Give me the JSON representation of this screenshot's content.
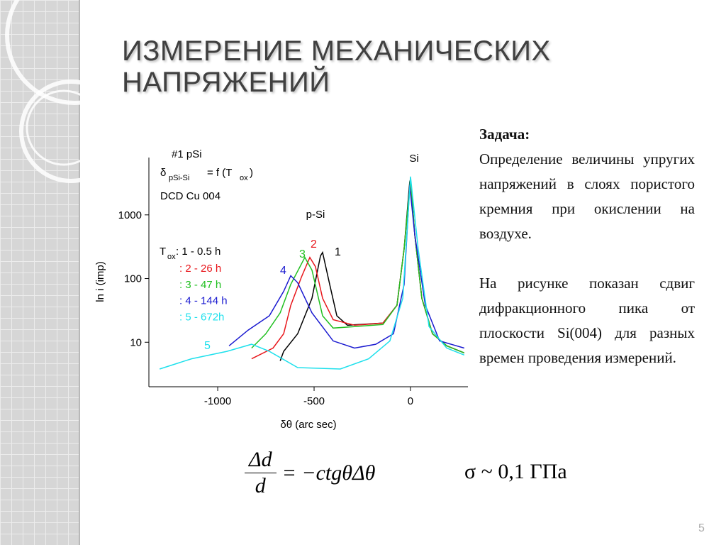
{
  "slide": {
    "title": [
      "ИЗМЕРЕНИЕ МЕХАНИЧЕСКИХ",
      "НАПРЯЖЕНИЙ"
    ],
    "task_heading": "Задача:",
    "task_text": "Определение величины упругих напряжений в слоях пористого кремния при окислении на воздухе.",
    "figure_text": "На рисунке показан сдвиг дифракционного пика от плоскости Si(004) для разных времен проведения измерений.",
    "formula": {
      "numerator": "Δd",
      "denominator": "d",
      "rhs": "= −ctgθΔθ"
    },
    "estimate": "σ ~ 0,1 ГПа",
    "page_number": "5"
  },
  "chart_data": {
    "type": "line",
    "x_label": "δθ (arc sec)",
    "y_label": "ln i (imp)",
    "log_y": true,
    "xlim": [
      -1357,
      298
    ],
    "ylim": [
      2,
      7950
    ],
    "xticks": [
      -1000,
      -500,
      0
    ],
    "yticks": [
      10,
      100,
      1000
    ],
    "annotations": {
      "sample": "#1 pSi",
      "relation_symbol": "δ",
      "relation_sub": "pSi-Si",
      "relation_mid": "= f (T",
      "relation_sub2": "ox",
      "relation_end": ")",
      "method": "DCD Cu 004",
      "peak_si": "Si",
      "peak_psi": "p-Si",
      "legend_t": "T",
      "legend_sub": "ox"
    },
    "series": [
      {
        "name": ": 1 - 0.5 h",
        "label": "1",
        "color": "#000000",
        "x": [
          -676,
          -658,
          -585,
          -511,
          -467,
          -456,
          -419,
          -382,
          -327,
          -143,
          -70,
          -33,
          -4,
          0,
          22,
          59,
          114,
          188,
          279
        ],
        "values": [
          5.1,
          7.2,
          13.6,
          48.9,
          227,
          257,
          81,
          26,
          18.5,
          20,
          38,
          293,
          3300,
          3600,
          490,
          49,
          13.6,
          8.8,
          6.8
        ]
      },
      {
        "name": ": 2 -  26 h",
        "label": "2",
        "color": "#e8161b",
        "x": [
          -824,
          -713,
          -658,
          -621,
          -566,
          -522,
          -493,
          -456,
          -401,
          -290,
          -143,
          -70,
          -33,
          0,
          22,
          59,
          114,
          188,
          279
        ],
        "values": [
          5.5,
          8.1,
          13.6,
          37.9,
          105,
          215,
          154,
          49,
          22.6,
          18.5,
          20,
          38,
          293,
          3400,
          490,
          49,
          13.6,
          8.8,
          6.8
        ]
      },
      {
        "name": ": 3 -  47 h",
        "label": "3",
        "color": "#22c022",
        "x": [
          -824,
          -750,
          -676,
          -621,
          -548,
          -511,
          -456,
          -401,
          -290,
          -143,
          -70,
          -33,
          0,
          22,
          59,
          114,
          188,
          279
        ],
        "values": [
          8.1,
          13.6,
          29,
          81,
          215,
          136,
          26,
          16.7,
          17.6,
          19,
          38,
          293,
          3800,
          490,
          49,
          13.6,
          8.8,
          6.8
        ]
      },
      {
        "name": ": 4 - 144 h",
        "label": "4",
        "color": "#1a1ad0",
        "x": [
          -941,
          -842,
          -732,
          -658,
          -621,
          -585,
          -511,
          -401,
          -290,
          -180,
          -88,
          -33,
          -4,
          22,
          77,
          151,
          279
        ],
        "values": [
          8.8,
          15.5,
          26,
          63,
          111,
          86,
          29,
          10.5,
          8.1,
          9.3,
          13.6,
          81,
          2900,
          490,
          38,
          10.5,
          8.1
        ]
      },
      {
        "name": ": 5  - 672h",
        "label": "5",
        "color": "#1ee0ec",
        "x": [
          -1301,
          -1136,
          -952,
          -824,
          -732,
          -585,
          -364,
          -217,
          -107,
          -40,
          0,
          40,
          96,
          188,
          279
        ],
        "values": [
          3.8,
          5.5,
          7.2,
          9.3,
          7.2,
          4,
          3.8,
          5.5,
          10.5,
          49,
          4000,
          293,
          17.6,
          8.1,
          6.3
        ]
      }
    ]
  }
}
